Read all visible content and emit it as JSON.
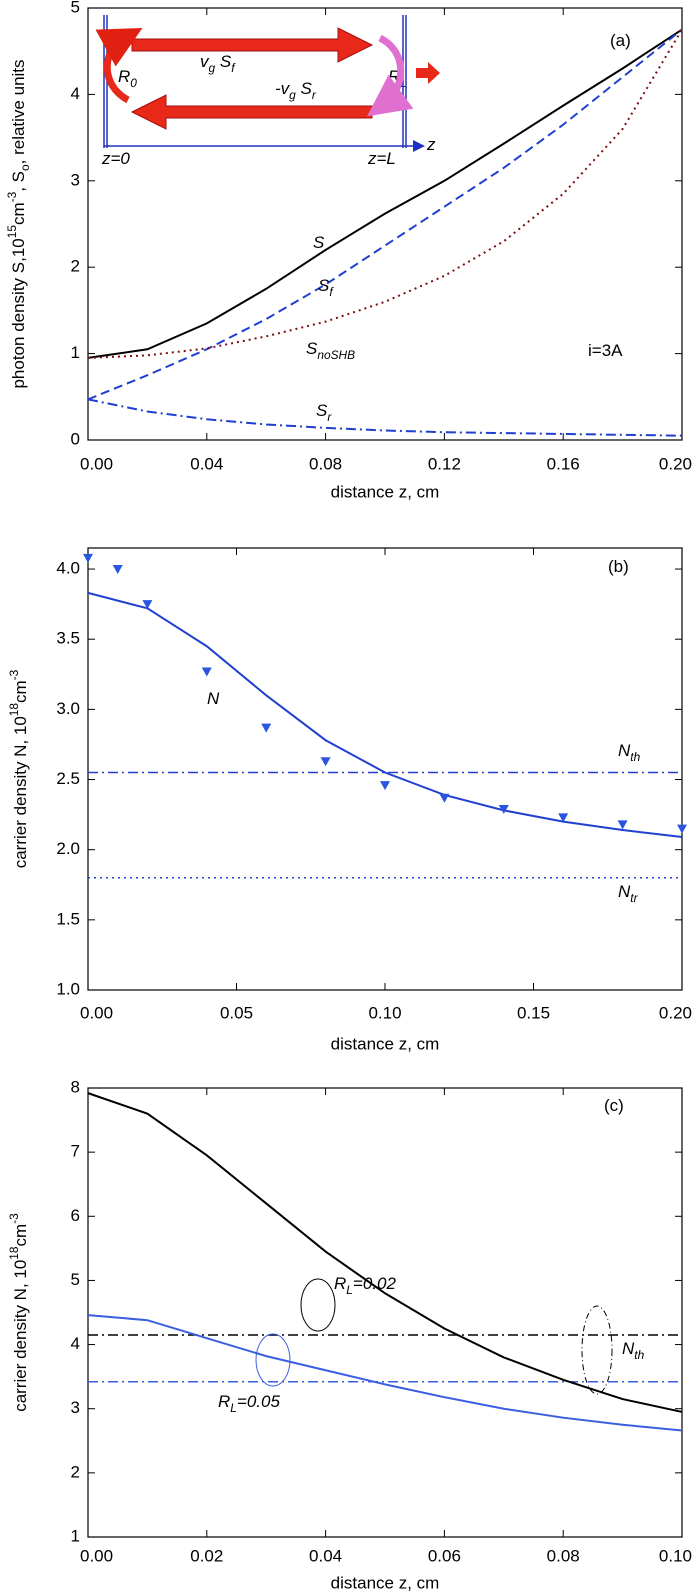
{
  "chart_data": [
    {
      "type": "line",
      "xlim": [
        0,
        0.2
      ],
      "ylim": [
        0,
        5
      ],
      "xticks": [
        {
          "value": 0,
          "label": "0.00"
        },
        0.04,
        0.08,
        0.12,
        0.16,
        {
          "value": 0.2,
          "label": "0.20"
        }
      ],
      "yticks": [
        0,
        1,
        2,
        3,
        4,
        5
      ],
      "xlabel": "distance z, cm",
      "ylabel": [
        {
          "text": "photon density S,10",
          "sup": "15"
        },
        {
          "text": "cm",
          "sup": "-3"
        },
        {
          "text": ", S",
          "sub": "o"
        },
        {
          "text": ", relative units"
        }
      ],
      "x": [
        0,
        0.02,
        0.04,
        0.06,
        0.08,
        0.1,
        0.12,
        0.14,
        0.16,
        0.18,
        0.2
      ],
      "series": [
        {
          "color": "#000000",
          "style": "solid",
          "values": [
            0.95,
            1.05,
            1.35,
            1.75,
            2.2,
            2.62,
            3.0,
            3.43,
            3.87,
            4.3,
            4.75
          ]
        },
        {
          "color": "#1f3fd0",
          "style": "dashed",
          "values": [
            0.47,
            0.75,
            1.05,
            1.4,
            1.8,
            2.25,
            2.7,
            3.15,
            3.65,
            4.2,
            4.75
          ]
        },
        {
          "color": "#7a1010",
          "style": "dotted",
          "values": [
            0.95,
            0.98,
            1.06,
            1.2,
            1.37,
            1.6,
            1.9,
            2.3,
            2.85,
            3.6,
            4.75
          ]
        },
        {
          "color": "#1f3fd0",
          "style": "dashdot",
          "values": [
            0.47,
            0.33,
            0.24,
            0.18,
            0.14,
            0.11,
            0.09,
            0.08,
            0.07,
            0.06,
            0.05
          ]
        }
      ],
      "annotations": [
        {
          "parts": [
            {
              "text": "(a)"
            }
          ]
        },
        {
          "parts": [
            {
              "text": "S"
            }
          ]
        },
        {
          "parts": [
            {
              "text": "S",
              "sub": "f"
            }
          ]
        },
        {
          "parts": [
            {
              "text": "S",
              "sub": "noSHB"
            }
          ]
        },
        {
          "parts": [
            {
              "text": "i=3A"
            }
          ]
        },
        {
          "parts": [
            {
              "text": "S",
              "sub": "r"
            }
          ]
        },
        {
          "parts": [
            {
              "text": "R",
              "sub": "0"
            }
          ]
        },
        {
          "parts": [
            {
              "text": "R",
              "sub": "L"
            }
          ]
        },
        {
          "parts": [
            {
              "text": "v",
              "sub": "g"
            },
            {
              "text": " S",
              "sub": "f"
            }
          ]
        },
        {
          "parts": [
            {
              "text": "-v",
              "sub": "g"
            },
            {
              "text": " S",
              "sub": "r"
            }
          ]
        },
        {
          "parts": [
            {
              "text": "z=0"
            }
          ]
        },
        {
          "parts": [
            {
              "text": "z=L"
            }
          ]
        },
        {
          "parts": [
            {
              "text": "z"
            }
          ]
        }
      ]
    },
    {
      "type": "line",
      "xlim": [
        0,
        0.2
      ],
      "ylim": [
        1.0,
        4.15
      ],
      "xticks": [
        {
          "value": 0,
          "label": "0.00"
        },
        0.05,
        {
          "value": 0.1,
          "label": "0.10"
        },
        0.15,
        {
          "value": 0.2,
          "label": "0.20"
        }
      ],
      "yticks": [
        {
          "value": 1,
          "label": "1.0"
        },
        1.5,
        {
          "value": 2,
          "label": "2.0"
        },
        2.5,
        {
          "value": 3,
          "label": "3.0"
        },
        3.5,
        {
          "value": 4,
          "label": "4.0"
        }
      ],
      "xlabel": "distance z, cm",
      "ylabel": [
        {
          "text": "carrier density N, 10",
          "sup": "18"
        },
        {
          "text": "cm",
          "sup": "-3"
        }
      ],
      "x": [
        0,
        0.02,
        0.04,
        0.06,
        0.08,
        0.1,
        0.12,
        0.14,
        0.16,
        0.18,
        0.2
      ],
      "series": [
        {
          "color": "#2040d0",
          "style": "solid",
          "values": [
            3.83,
            3.72,
            3.45,
            3.1,
            2.78,
            2.55,
            2.39,
            2.28,
            2.2,
            2.14,
            2.09
          ]
        },
        {
          "color": "#2a55e0",
          "style": "none",
          "marker": "triangle",
          "x": [
            0,
            0.01,
            0.02,
            0.04,
            0.06,
            0.08,
            0.1,
            0.12,
            0.14,
            0.16,
            0.18,
            0.2
          ],
          "values": [
            4.08,
            4.0,
            3.75,
            3.27,
            2.87,
            2.63,
            2.46,
            2.37,
            2.29,
            2.23,
            2.18,
            2.15
          ]
        }
      ],
      "hlines": [
        {
          "value": 2.55,
          "color": "#2040d0",
          "style": "dashdot"
        },
        {
          "value": 1.8,
          "color": "#2040d0",
          "style": "dotted"
        }
      ],
      "annotations": [
        {
          "parts": [
            {
              "text": "(b)"
            }
          ]
        },
        {
          "parts": [
            {
              "text": "N"
            }
          ]
        },
        {
          "parts": [
            {
              "text": "N",
              "sub": "th"
            }
          ]
        },
        {
          "parts": [
            {
              "text": "N",
              "sub": "tr"
            }
          ]
        }
      ]
    },
    {
      "type": "line",
      "xlim": [
        0,
        0.1
      ],
      "ylim": [
        1,
        8
      ],
      "xticks": [
        {
          "value": 0,
          "label": "0.00"
        },
        0.02,
        0.04,
        0.06,
        0.08,
        {
          "value": 0.1,
          "label": "0.10"
        }
      ],
      "yticks": [
        1,
        2,
        3,
        4,
        5,
        6,
        7,
        8
      ],
      "xlabel": "distance z, cm",
      "ylabel": [
        {
          "text": "carrier density N, 10",
          "sup": "18"
        },
        {
          "text": "cm",
          "sup": "-3"
        }
      ],
      "x": [
        0,
        0.01,
        0.02,
        0.03,
        0.04,
        0.05,
        0.06,
        0.07,
        0.08,
        0.09,
        0.1
      ],
      "series": [
        {
          "color": "#000000",
          "style": "solid",
          "values": [
            7.92,
            7.6,
            6.95,
            6.2,
            5.45,
            4.8,
            4.25,
            3.8,
            3.45,
            3.15,
            2.95
          ]
        },
        {
          "color": "#3a5ee0",
          "style": "solid",
          "values": [
            4.46,
            4.38,
            4.1,
            3.82,
            3.6,
            3.38,
            3.18,
            3.0,
            2.86,
            2.75,
            2.66
          ]
        }
      ],
      "hlines": [
        {
          "value": 4.15,
          "color": "#000000",
          "style": "dashdot"
        },
        {
          "value": 3.42,
          "color": "#3a5ee0",
          "style": "dashdot"
        }
      ],
      "annotations": [
        {
          "parts": [
            {
              "text": "(c)"
            }
          ]
        },
        {
          "parts": [
            {
              "text": "R",
              "sub": "L"
            },
            {
              "text": "=0.02"
            }
          ]
        },
        {
          "parts": [
            {
              "text": "R",
              "sub": "L"
            },
            {
              "text": "=0.05"
            }
          ]
        },
        {
          "parts": [
            {
              "text": "N",
              "sub": "th"
            }
          ]
        }
      ]
    }
  ]
}
